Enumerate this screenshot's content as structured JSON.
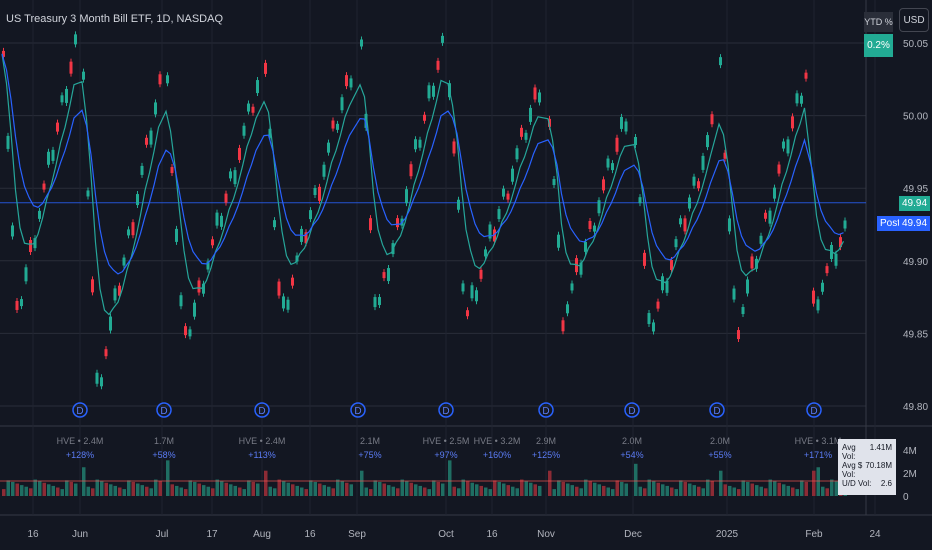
{
  "header": {
    "title": "US Treasury 3 Month Bill ETF, 1D, NASDAQ",
    "currency": "USD"
  },
  "ytd": {
    "label": "YTD %",
    "value": "0.2%"
  },
  "price_axis": {
    "ticks": [
      "50.05",
      "50.00",
      "49.95",
      "49.90",
      "49.85",
      "49.80"
    ],
    "values": [
      50.05,
      50.0,
      49.95,
      49.9,
      49.85,
      49.8
    ]
  },
  "last_price": "49.94",
  "post": {
    "label": "Post",
    "price": "49.94"
  },
  "volume_axis": {
    "ticks": [
      "4M",
      "2M",
      "0"
    ],
    "values": [
      4,
      2,
      0
    ]
  },
  "time_axis": {
    "labels": [
      "16",
      "Jun",
      "Jul",
      "17",
      "Aug",
      "16",
      "Sep",
      "Oct",
      "16",
      "Nov",
      "Dec",
      "2025",
      "Feb",
      "24"
    ]
  },
  "dividend_marker": "D",
  "volume_annotations": [
    {
      "vol": "HVE • 2.4M",
      "pct": "+128%"
    },
    {
      "vol": "1.7M",
      "pct": "+58%"
    },
    {
      "vol": "HVE • 2.4M",
      "pct": "+113%"
    },
    {
      "vol": "2.1M",
      "pct": "+75%"
    },
    {
      "vol": "HVE • 2.5M",
      "pct": "+97%"
    },
    {
      "vol": "HVE • 3.2M",
      "pct": "+160%"
    },
    {
      "vol": "2.9M",
      "pct": "+125%"
    },
    {
      "vol": "2.0M",
      "pct": "+54%"
    },
    {
      "vol": "2.0M",
      "pct": "+55%"
    },
    {
      "vol": "HVE • 3.1M",
      "pct": "+171%"
    }
  ],
  "vol_stats": [
    {
      "label": "Avg Vol:",
      "value": "1.41M"
    },
    {
      "label": "Avg $ Vol:",
      "value": "70.18M"
    },
    {
      "label": "U/D Vol:",
      "value": "2.6"
    }
  ],
  "colors": {
    "up": "#22ab94",
    "down": "#f23645",
    "ema_fast": "#26a69a",
    "ema_slow": "#2962ff",
    "post": "#2962ff",
    "highlight": "#2962ff"
  }
}
